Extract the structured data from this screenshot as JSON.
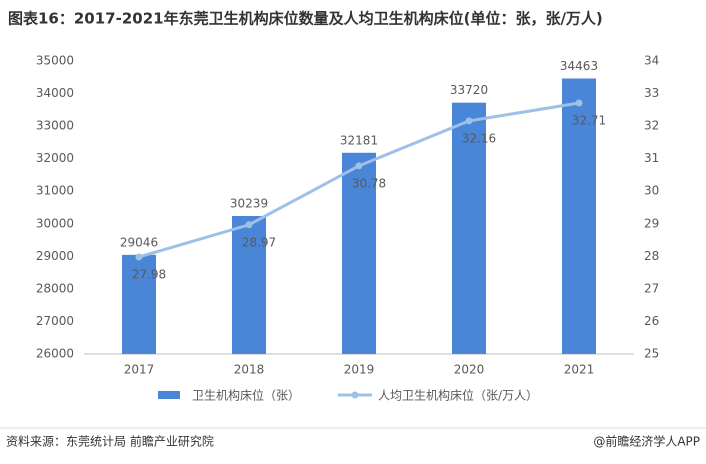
{
  "chart_data": {
    "type": "bar",
    "title": "图表16：2017-2021年东莞卫生机构床位数量及人均卫生机构床位(单位：张，张/万人)",
    "categories": [
      "2017",
      "2018",
      "2019",
      "2020",
      "2021"
    ],
    "series": [
      {
        "name": "卫生机构床位（张）",
        "type": "bar",
        "color": "#4a86d8",
        "values": [
          29046,
          30239,
          32181,
          33720,
          34463
        ]
      },
      {
        "name": "人均卫生机构床位（张/万人）",
        "type": "line",
        "axis": "y2",
        "color": "#9dc0e6",
        "values": [
          27.98,
          28.97,
          30.78,
          32.16,
          32.71
        ]
      }
    ],
    "ylim": [
      26000,
      35000
    ],
    "yticks": [
      26000,
      27000,
      28000,
      29000,
      30000,
      31000,
      32000,
      33000,
      34000,
      35000
    ],
    "y2lim": [
      25,
      34
    ],
    "y2ticks": [
      25,
      26,
      27,
      28,
      29,
      30,
      31,
      32,
      33,
      34
    ],
    "grid": false,
    "legend": "bottom",
    "source": "资料来源：东莞统计局 前瞻产业研究院",
    "credit": "@前瞻经济学人APP"
  }
}
